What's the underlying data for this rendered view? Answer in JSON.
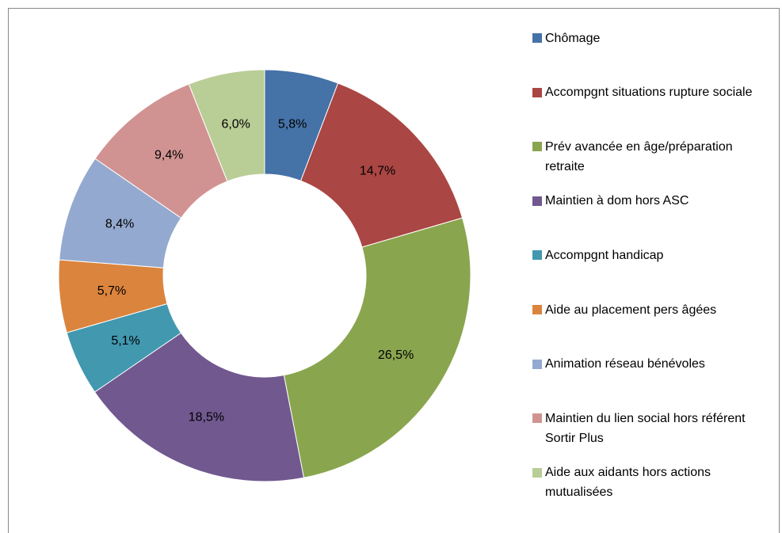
{
  "chart_data": {
    "type": "donut",
    "categories": [
      "Chômage",
      "Accompgnt situations  rupture sociale",
      "Prév avancée en âge/préparation retraite",
      "Maintien à dom hors ASC",
      "Accompgnt handicap",
      "Aide au placement pers âgées",
      "Animation réseau bénévoles",
      "Maintien du lien social hors référent Sortir Plus",
      "Aide aux aidants hors actions mutualisées"
    ],
    "values": [
      5.8,
      14.7,
      26.5,
      18.5,
      5.1,
      5.7,
      8.4,
      9.4,
      6.0
    ],
    "value_labels": [
      "5,8%",
      "14,7%",
      "26,5%",
      "18,5%",
      "5,1%",
      "5,7%",
      "8,4%",
      "9,4%",
      "6,0%"
    ],
    "colors": [
      "#4572A7",
      "#AA4643",
      "#89A54E",
      "#71588F",
      "#4198AF",
      "#DB843D",
      "#93A9CF",
      "#D19392",
      "#B9CD96"
    ],
    "legend": "right"
  }
}
